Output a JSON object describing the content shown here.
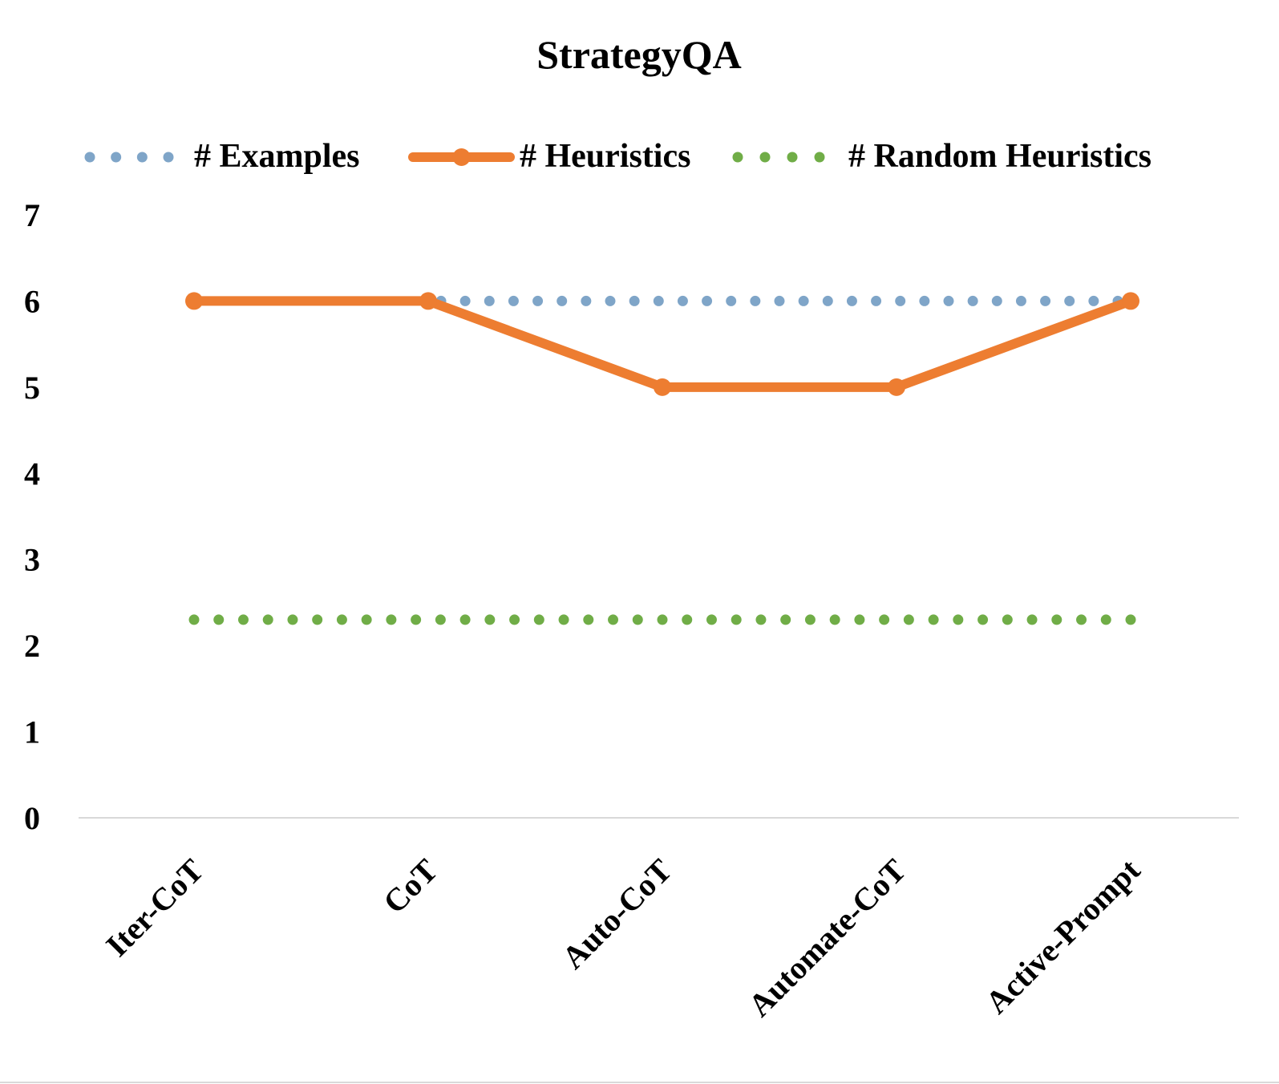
{
  "chart_data": {
    "type": "line",
    "title": "StrategyQA",
    "xlabel": "",
    "ylabel": "",
    "categories": [
      "Iter-CoT",
      "CoT",
      "Auto-CoT",
      "Automate-CoT",
      "Active-Prompt"
    ],
    "ylim": [
      0,
      7
    ],
    "yticks": [
      "0",
      "1",
      "2",
      "3",
      "4",
      "5",
      "6",
      "7"
    ],
    "grid": false,
    "legend_position": "top",
    "series": [
      {
        "name": "# Examples",
        "values": [
          6,
          6,
          6,
          6,
          6
        ],
        "color": "#7fa5c8",
        "style": "dotted"
      },
      {
        "name": "# Heuristics",
        "values": [
          6,
          6,
          5,
          5,
          6
        ],
        "color": "#ed7d31",
        "style": "solid-markers"
      },
      {
        "name": "# Random Heuristics",
        "values": [
          2.3,
          2.3,
          2.3,
          2.3,
          2.3
        ],
        "color": "#70ad47",
        "style": "dotted"
      }
    ]
  }
}
